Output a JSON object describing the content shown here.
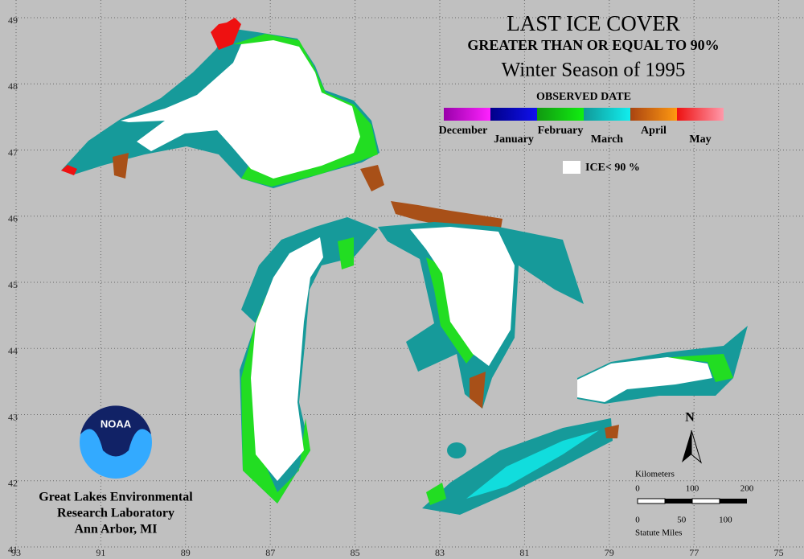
{
  "header": {
    "title": "LAST ICE COVER",
    "subtitle": "GREATER THAN OR EQUAL TO 90%",
    "season": "Winter Season of 1995"
  },
  "legend": {
    "title": "OBSERVED DATE",
    "items": [
      {
        "label": "December",
        "colors": [
          "#9900aa",
          "#ff22ff"
        ]
      },
      {
        "label": "January",
        "colors": [
          "#000088",
          "#1111ee"
        ]
      },
      {
        "label": "February",
        "colors": [
          "#119911",
          "#11ee11"
        ]
      },
      {
        "label": "March",
        "colors": [
          "#119999",
          "#11eeee"
        ]
      },
      {
        "label": "April",
        "colors": [
          "#aa4411",
          "#ff9911"
        ]
      },
      {
        "label": "May",
        "colors": [
          "#ee1111",
          "#ff99aa"
        ]
      }
    ],
    "ice_label": "ICE< 90 %"
  },
  "grid": {
    "latitudes": [
      49,
      48,
      47,
      46,
      45,
      44,
      43,
      42,
      41
    ],
    "longitudes": [
      93,
      91,
      89,
      87,
      85,
      83,
      81,
      79,
      77,
      75
    ]
  },
  "logo": {
    "text": "NOAA"
  },
  "credit": {
    "lines": [
      "Great Lakes Environmental",
      "Research Laboratory",
      "Ann Arbor, MI"
    ]
  },
  "north": "N",
  "scale": {
    "km_title": "Kilometers",
    "km_ticks": [
      0,
      100,
      200
    ],
    "mile_ticks": [
      0,
      50,
      100
    ],
    "mile_title": "Statute Miles"
  }
}
